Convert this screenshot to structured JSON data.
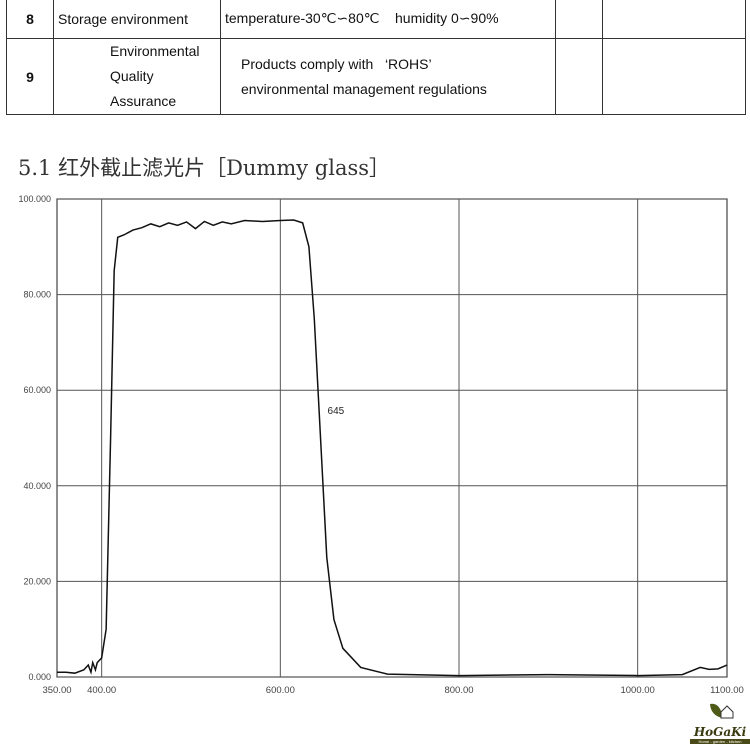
{
  "table": {
    "rows": [
      {
        "no": "8",
        "item": "Storage environment",
        "spec": "temperature-30℃∽80℃    humidity 0∽90%"
      },
      {
        "no": "9",
        "item_line1": "Environmental",
        "item_line2": "Quality Assurance",
        "spec_line1": "Products comply with   ‘ROHS’",
        "spec_line2": "environmental management regulations"
      }
    ]
  },
  "section_heading": "5.1 红外截止滤光片［Dummy glass］",
  "chart_data": {
    "type": "line",
    "title": "",
    "xlabel": "",
    "ylabel": "",
    "xlim": [
      350,
      1100
    ],
    "ylim": [
      0,
      100
    ],
    "x_ticks": [
      "350.00",
      "400.00",
      "600.00",
      "800.00",
      "1000.00",
      "1100.00"
    ],
    "x_tick_values": [
      350,
      400,
      600,
      800,
      1000,
      1100
    ],
    "y_ticks": [
      "0.000",
      "20.000",
      "40.000",
      "60.000",
      "80.000",
      "100.000"
    ],
    "y_tick_values": [
      0,
      20,
      40,
      60,
      80,
      100
    ],
    "grid": true,
    "annotation": {
      "text": "645",
      "x": 645,
      "y": 55
    },
    "series": [
      {
        "color": "#111111",
        "points": [
          [
            350,
            1
          ],
          [
            360,
            1
          ],
          [
            370,
            0.8
          ],
          [
            380,
            1.5
          ],
          [
            385,
            2.5
          ],
          [
            388,
            1
          ],
          [
            390,
            3
          ],
          [
            393,
            1.5
          ],
          [
            395,
            3
          ],
          [
            400,
            4
          ],
          [
            405,
            10
          ],
          [
            410,
            50
          ],
          [
            414,
            85
          ],
          [
            418,
            92
          ],
          [
            425,
            92.5
          ],
          [
            435,
            93.5
          ],
          [
            445,
            94
          ],
          [
            455,
            94.8
          ],
          [
            465,
            94.2
          ],
          [
            475,
            95
          ],
          [
            485,
            94.5
          ],
          [
            495,
            95.2
          ],
          [
            505,
            93.8
          ],
          [
            515,
            95.3
          ],
          [
            525,
            94.5
          ],
          [
            535,
            95.2
          ],
          [
            545,
            94.8
          ],
          [
            560,
            95.5
          ],
          [
            580,
            95.3
          ],
          [
            600,
            95.5
          ],
          [
            615,
            95.6
          ],
          [
            625,
            95
          ],
          [
            632,
            90
          ],
          [
            638,
            75
          ],
          [
            645,
            50
          ],
          [
            652,
            25
          ],
          [
            660,
            12
          ],
          [
            670,
            6
          ],
          [
            690,
            2
          ],
          [
            720,
            0.6
          ],
          [
            800,
            0.3
          ],
          [
            900,
            0.5
          ],
          [
            1000,
            0.3
          ],
          [
            1050,
            0.5
          ],
          [
            1070,
            2
          ],
          [
            1080,
            1.6
          ],
          [
            1090,
            1.7
          ],
          [
            1100,
            2.5
          ]
        ]
      }
    ]
  },
  "logo": {
    "text": "HoGaKi",
    "tagline": "Home - garden - kitchen"
  }
}
